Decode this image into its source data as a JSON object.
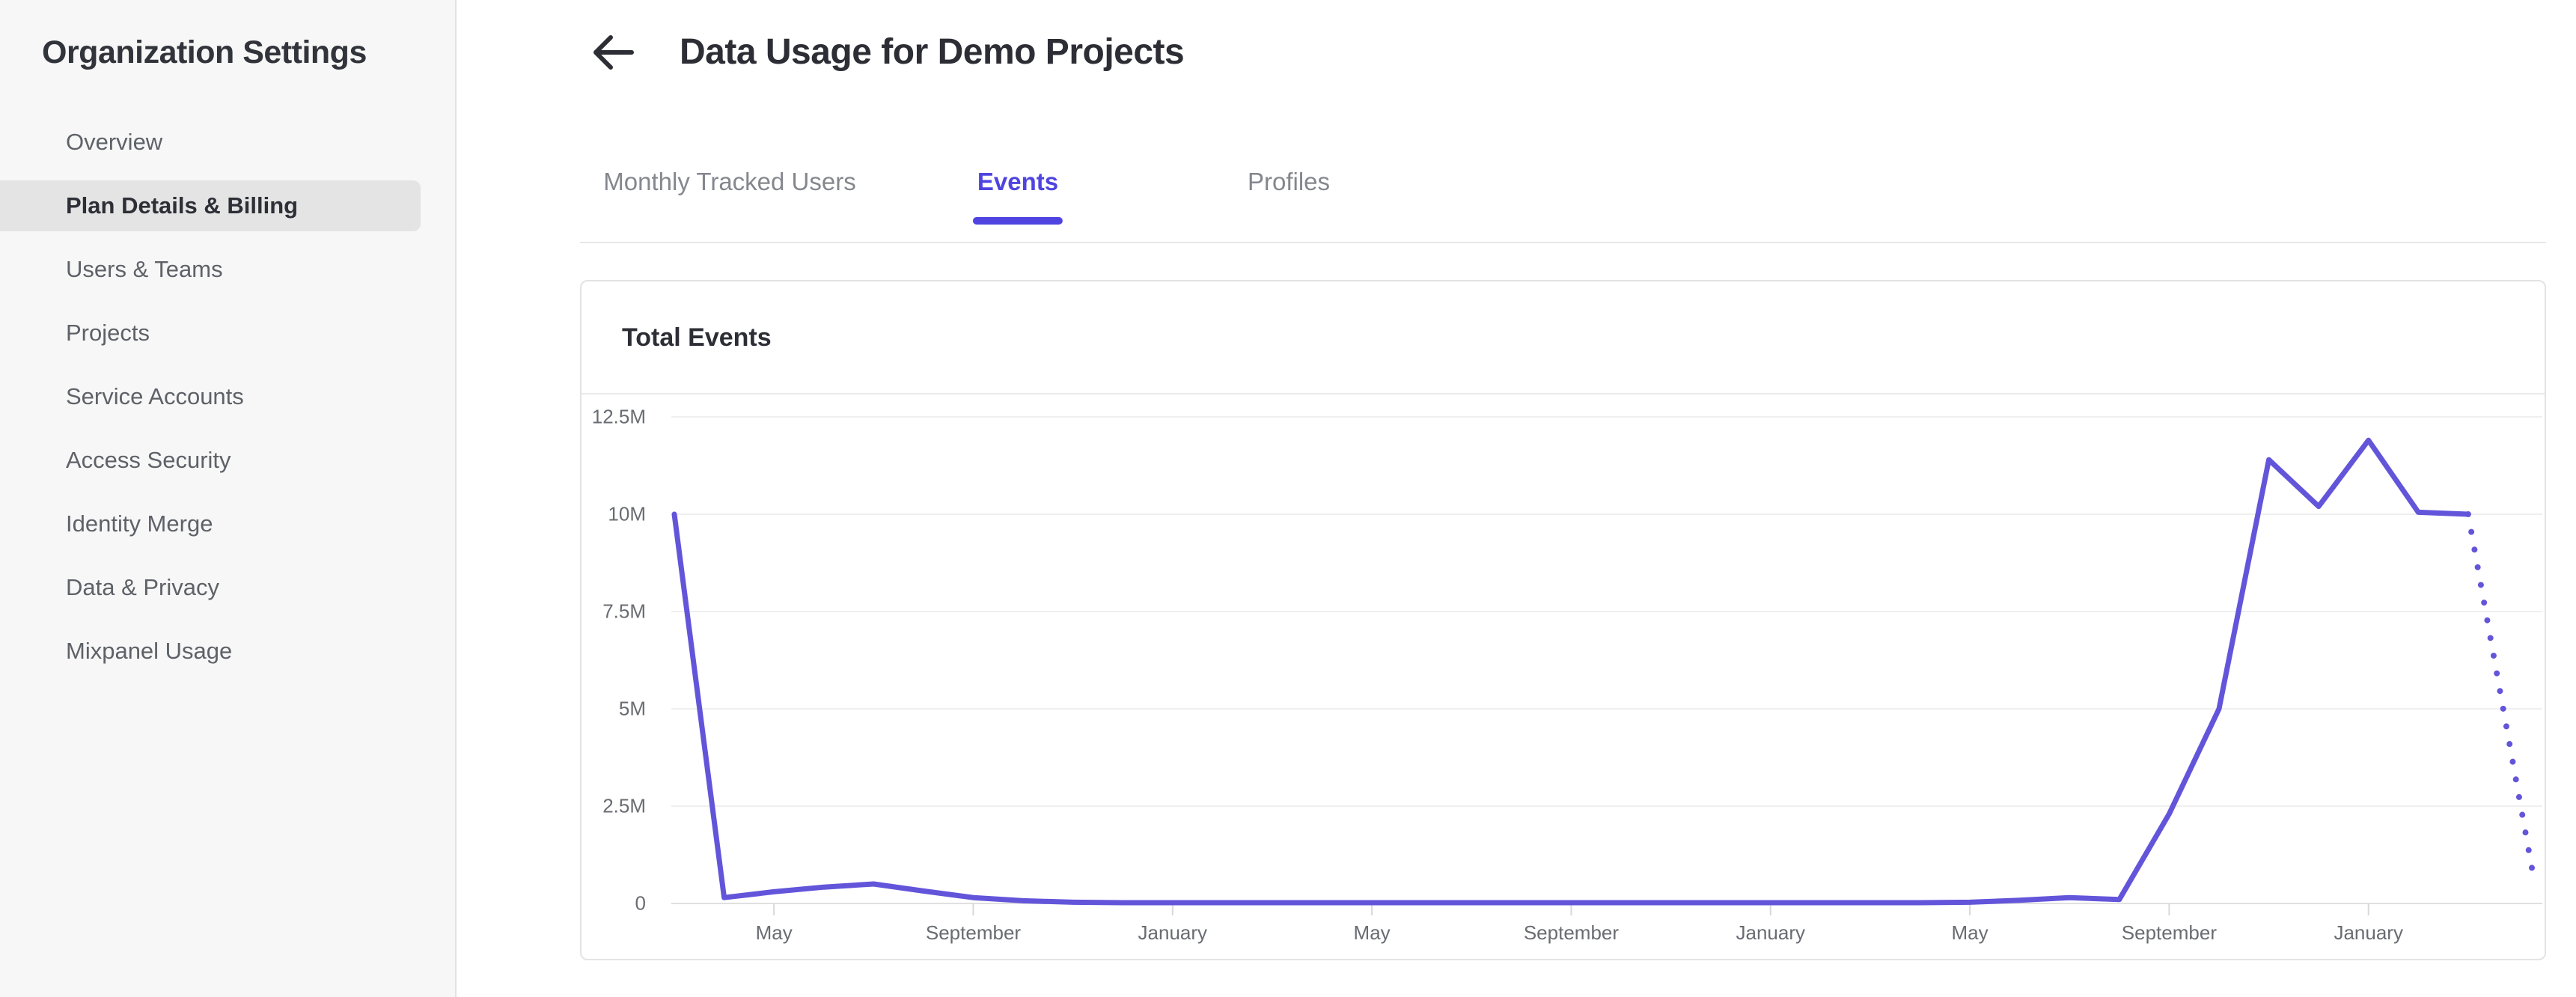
{
  "sidebar": {
    "title": "Organization Settings",
    "items": [
      {
        "label": "Overview",
        "selected": false
      },
      {
        "label": "Plan Details & Billing",
        "selected": true
      },
      {
        "label": "Users & Teams",
        "selected": false
      },
      {
        "label": "Projects",
        "selected": false
      },
      {
        "label": "Service Accounts",
        "selected": false
      },
      {
        "label": "Access Security",
        "selected": false
      },
      {
        "label": "Identity Merge",
        "selected": false
      },
      {
        "label": "Data & Privacy",
        "selected": false
      },
      {
        "label": "Mixpanel Usage",
        "selected": false
      }
    ]
  },
  "header": {
    "title": "Data Usage for Demo Projects",
    "back_icon": "left-arrow-icon"
  },
  "tabs": [
    {
      "label": "Monthly Tracked Users",
      "active": false
    },
    {
      "label": "Events",
      "active": true
    },
    {
      "label": "Profiles",
      "active": false
    }
  ],
  "card": {
    "title": "Total Events"
  },
  "chart_data": {
    "type": "line",
    "title": "Total Events",
    "ylim_millions": [
      0,
      12.5
    ],
    "y_tick_labels": [
      "12.5M",
      "10M",
      "7.5M",
      "5M",
      "2.5M",
      "0"
    ],
    "y_tick_values_millions": [
      12.5,
      10,
      7.5,
      5,
      2.5,
      0
    ],
    "x_tick_labels": [
      "May",
      "September",
      "January",
      "May",
      "September",
      "January",
      "May",
      "September",
      "January"
    ],
    "x_tick_month_indices": [
      2,
      6,
      10,
      14,
      18,
      22,
      26,
      30,
      34
    ],
    "values_millions": [
      10,
      0.15,
      0.3,
      0.42,
      0.5,
      0.32,
      0.15,
      0.07,
      0.03,
      0.02,
      0.02,
      0.02,
      0.02,
      0.02,
      0.02,
      0.02,
      0.02,
      0.02,
      0.02,
      0.02,
      0.02,
      0.02,
      0.02,
      0.02,
      0.02,
      0.02,
      0.03,
      0.08,
      0.15,
      0.1,
      2.3,
      5.0,
      11.4,
      10.2,
      11.9,
      10.05,
      10.0
    ],
    "projected_tail_millions": 0.55,
    "grid": true,
    "legend": "none",
    "line_color": "#6355da",
    "grid_color": "#efefef",
    "baseline_color": "#e0e0e0",
    "tick_color": "#d8d8d8"
  },
  "colors": {
    "accent": "#4f44e0",
    "line": "#6355da",
    "sidebar_bg": "#f7f7f7",
    "selected_item_bg": "#e4e4e4"
  }
}
